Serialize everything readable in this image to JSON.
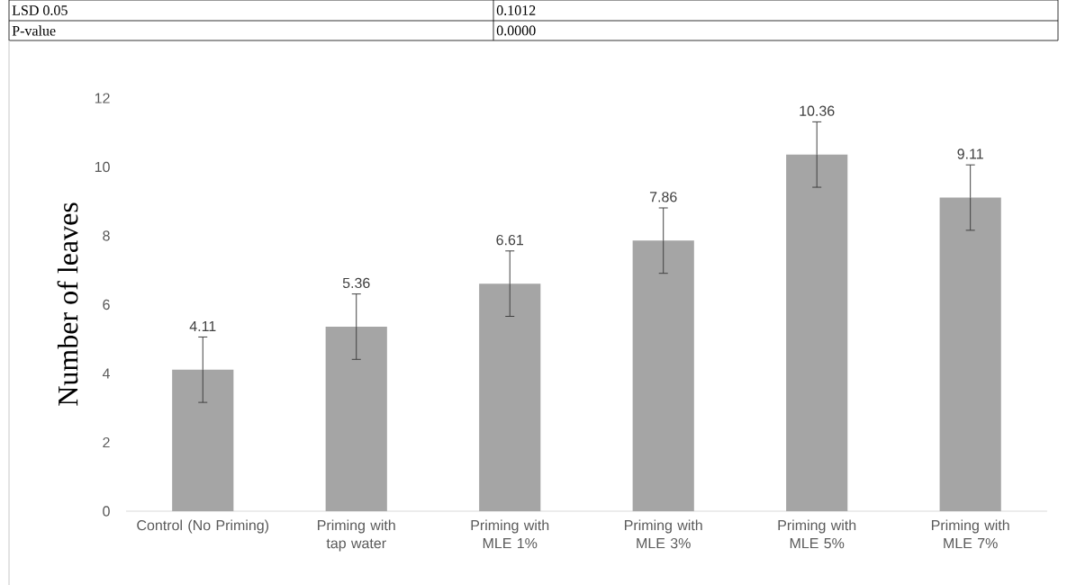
{
  "chart_data": {
    "type": "bar",
    "ylabel": "Number of leaves",
    "categories": [
      "Control (No Priming)",
      "Priming with tap water",
      "Priming with MLE 1%",
      "Priming with MLE 3%",
      "Priming with MLE 5%",
      "Priming with MLE 7%"
    ],
    "values": [
      4.11,
      5.36,
      6.61,
      7.86,
      10.36,
      9.11
    ],
    "errors": [
      0.95,
      0.95,
      0.95,
      0.95,
      0.95,
      0.95
    ],
    "color": "#a5a5a5",
    "ylim": [
      0,
      12
    ],
    "yticks": [
      0,
      2,
      4,
      6,
      8,
      10,
      12
    ],
    "data_labels": true,
    "annotations": [
      "LSD 0.05",
      "0.1012",
      "P-value",
      "0.0000"
    ]
  }
}
